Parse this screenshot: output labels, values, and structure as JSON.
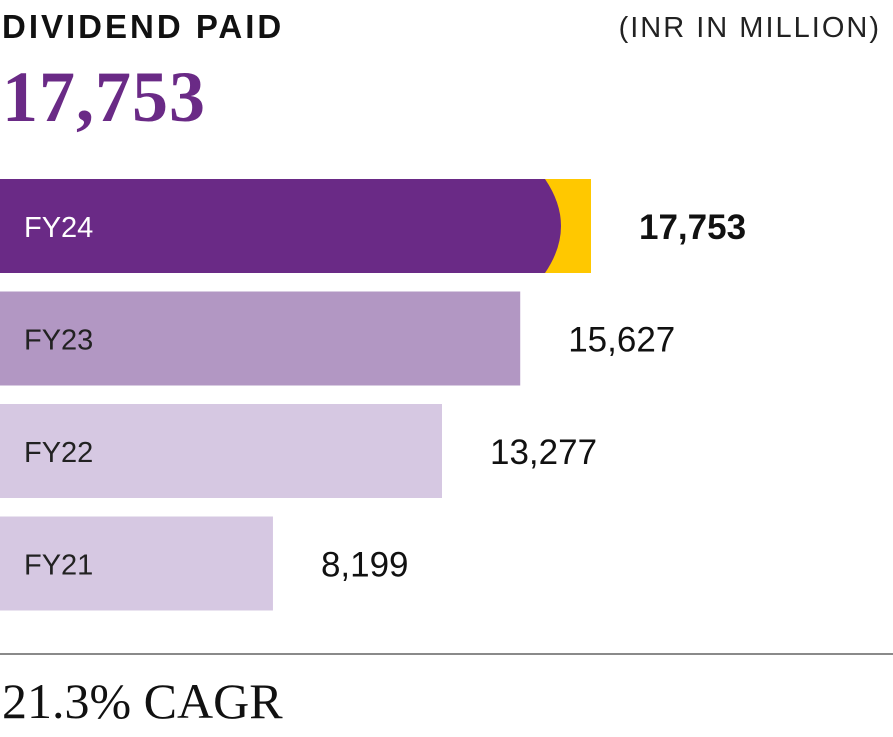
{
  "header": {
    "title": "DIVIDEND PAID",
    "unit": "(INR IN MILLION)",
    "headline_value": "17,753"
  },
  "footer": {
    "cagr": "21.3% CAGR"
  },
  "colors": {
    "highlight": "#6a2a86",
    "accent": "#ffc800",
    "fy23": "#b297c3",
    "fy22_fy21": "#d6c8e2"
  },
  "chart_data": {
    "type": "bar",
    "orientation": "horizontal",
    "categories": [
      "FY24",
      "FY23",
      "FY22",
      "FY21"
    ],
    "values": [
      17753,
      15627,
      13277,
      8199
    ],
    "value_labels": [
      "17,753",
      "15,627",
      "13,277",
      "8,199"
    ],
    "title": "DIVIDEND PAID",
    "unit": "(INR IN MILLION)",
    "highlight_category": "FY24",
    "grid": false
  }
}
